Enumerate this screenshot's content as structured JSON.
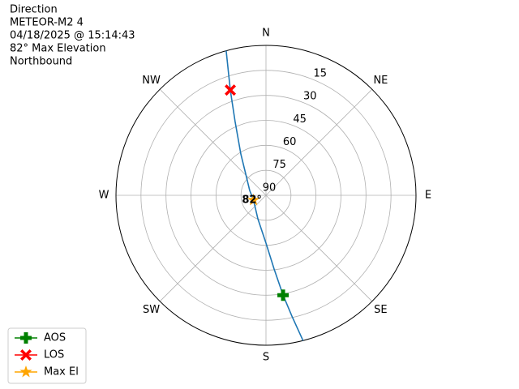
{
  "chart_data": {
    "type": "polar",
    "title_lines": [
      "Direction",
      "METEOR-M2 4",
      "04/18/2025 @ 15:14:43",
      "82° Max Elevation",
      "Northbound"
    ],
    "xticks": [
      {
        "value": 0,
        "label": "N"
      },
      {
        "value": 45,
        "label": "NE"
      },
      {
        "value": 90,
        "label": "E"
      },
      {
        "value": 135,
        "label": "SE"
      },
      {
        "value": 180,
        "label": "S"
      },
      {
        "value": 225,
        "label": "SW"
      },
      {
        "value": 270,
        "label": "W"
      },
      {
        "value": 315,
        "label": "NW"
      }
    ],
    "ylim": [
      90,
      0
    ],
    "yticks": [
      90,
      75,
      60,
      45,
      30,
      15
    ],
    "grid": true,
    "track": {
      "color": "#1f77b4",
      "azimuth": [
        344.6,
        341.3,
        337.3,
        328.7,
        316.1,
        286.7,
        249,
        199,
        180,
        173.7,
        170.3,
        167.9,
        165.7
      ],
      "elevation": [
        0,
        23.3,
        42,
        61,
        72.5,
        79.8,
        82,
        75.1,
        61.3,
        45.5,
        29.2,
        15.9,
        0
      ]
    },
    "series": [
      {
        "name": "AOS",
        "color": "#008000",
        "marker": "plus",
        "azimuth": [
          170.3
        ],
        "elevation": [
          29.2
        ]
      },
      {
        "name": "LOS",
        "color": "#ff0000",
        "marker": "x",
        "azimuth": [
          341.3
        ],
        "elevation": [
          23.3
        ]
      },
      {
        "name": "Max El",
        "color": "#ffa500",
        "marker": "star",
        "azimuth": [
          249
        ],
        "elevation": [
          82
        ],
        "value_labels": [
          "82°"
        ]
      }
    ],
    "legend": "lower left"
  }
}
